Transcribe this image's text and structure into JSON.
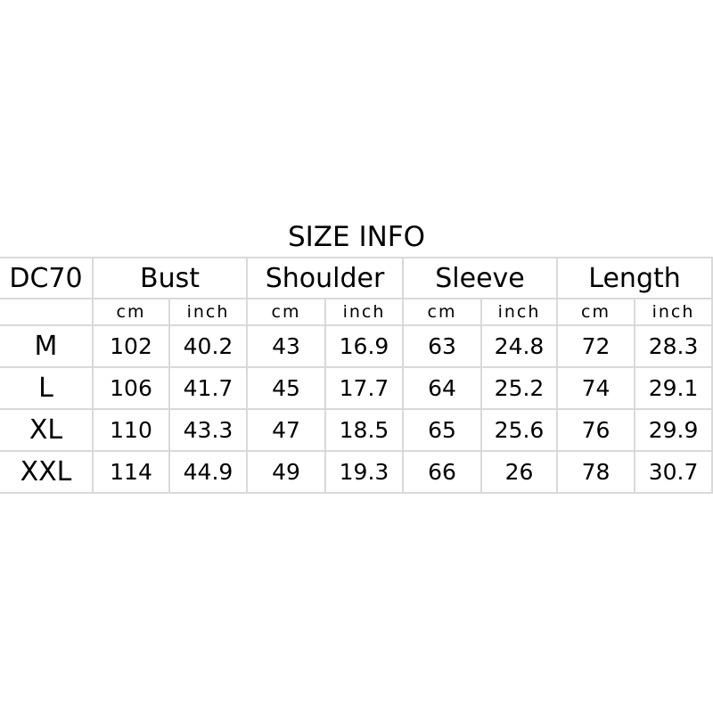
{
  "title": "SIZE INFO",
  "model": "DC70",
  "columns": [
    "Bust",
    "Shoulder",
    "Sleeve",
    "Length"
  ],
  "units": [
    "cm",
    "inch"
  ],
  "rows": [
    {
      "size": "M",
      "values": [
        "102",
        "40.2",
        "43",
        "16.9",
        "63",
        "24.8",
        "72",
        "28.3"
      ]
    },
    {
      "size": "L",
      "values": [
        "106",
        "41.7",
        "45",
        "17.7",
        "64",
        "25.2",
        "74",
        "29.1"
      ]
    },
    {
      "size": "XL",
      "values": [
        "110",
        "43.3",
        "47",
        "18.5",
        "65",
        "25.6",
        "76",
        "29.9"
      ]
    },
    {
      "size": "XXL",
      "values": [
        "114",
        "44.9",
        "49",
        "19.3",
        "66",
        "26",
        "78",
        "30.7"
      ]
    }
  ],
  "colors": {
    "grid": "#d9d9d9",
    "text": "#000000"
  }
}
